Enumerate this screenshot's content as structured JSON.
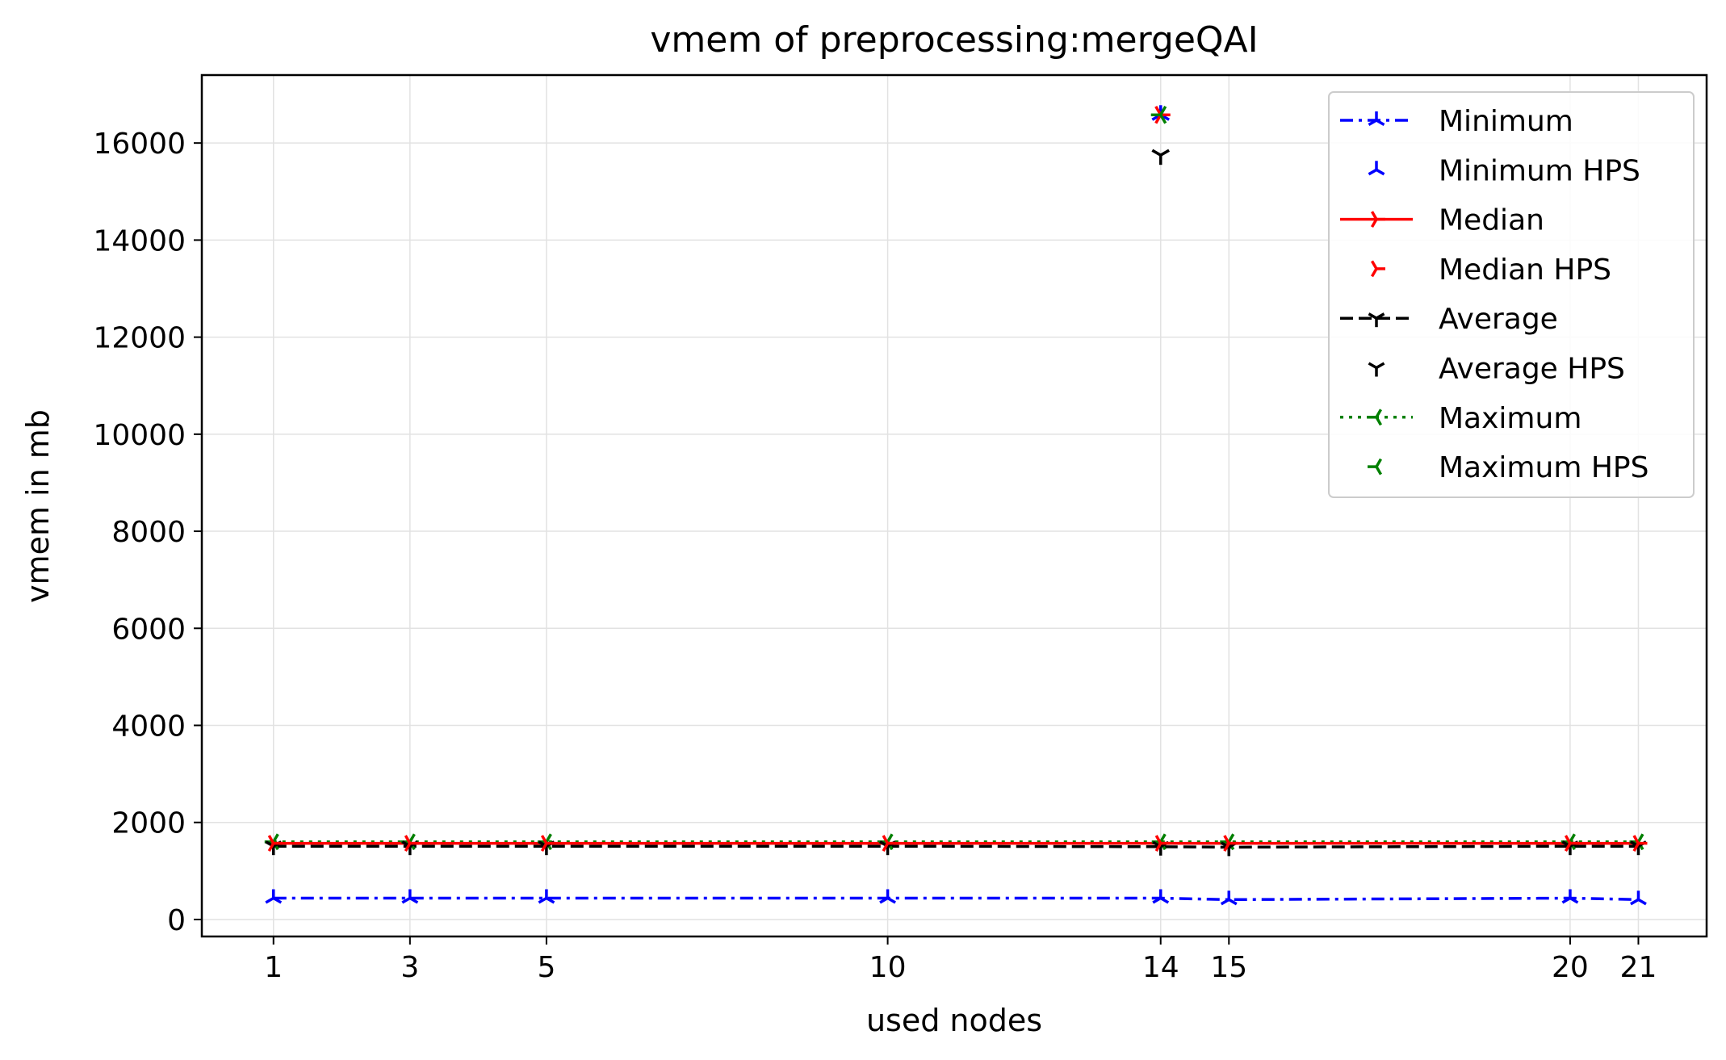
{
  "chart_data": {
    "type": "line",
    "title": "vmem of preprocessing:mergeQAI",
    "xlabel": "used nodes",
    "ylabel": "vmem in mb",
    "x": [
      1,
      3,
      5,
      10,
      14,
      15,
      20,
      21
    ],
    "xticks": [
      "1",
      "3",
      "5",
      "10",
      "14",
      "15",
      "20",
      "21"
    ],
    "yticks": [
      "0",
      "2000",
      "4000",
      "6000",
      "8000",
      "10000",
      "12000",
      "14000",
      "16000"
    ],
    "ylim": [
      -350,
      17400
    ],
    "xlim": [
      -0.05,
      22
    ],
    "grid": true,
    "legend_position": "top-right",
    "series": [
      {
        "name": "Minimum",
        "color": "#0000ff",
        "dash": "dashdot",
        "marker": "tri-up",
        "values": [
          440,
          440,
          440,
          440,
          440,
          410,
          440,
          410
        ]
      },
      {
        "name": "Median",
        "color": "#ff0000",
        "dash": "solid",
        "marker": "tri-right",
        "values": [
          1570,
          1570,
          1570,
          1570,
          1570,
          1570,
          1570,
          1570
        ]
      },
      {
        "name": "Average",
        "color": "#000000",
        "dash": "dashed",
        "marker": "tri-down",
        "values": [
          1510,
          1510,
          1510,
          1510,
          1500,
          1490,
          1510,
          1510
        ]
      },
      {
        "name": "Maximum",
        "color": "#008000",
        "dash": "dotted",
        "marker": "tri-left",
        "values": [
          1600,
          1600,
          1600,
          1600,
          1600,
          1600,
          1600,
          1600
        ]
      }
    ],
    "hps_series": [
      {
        "name": "Minimum HPS",
        "color": "#0000ff",
        "marker": "tri-up",
        "x": [
          14
        ],
        "values": [
          16580
        ]
      },
      {
        "name": "Median HPS",
        "color": "#ff0000",
        "marker": "tri-right",
        "x": [
          14
        ],
        "values": [
          16580
        ]
      },
      {
        "name": "Average HPS",
        "color": "#000000",
        "marker": "tri-down",
        "x": [
          14
        ],
        "values": [
          15750
        ]
      },
      {
        "name": "Maximum HPS",
        "color": "#008000",
        "marker": "tri-left",
        "x": [
          14
        ],
        "values": [
          16580
        ]
      }
    ],
    "legend": [
      "Minimum",
      "Minimum HPS",
      "Median",
      "Median HPS",
      "Average",
      "Average HPS",
      "Maximum",
      "Maximum HPS"
    ]
  }
}
